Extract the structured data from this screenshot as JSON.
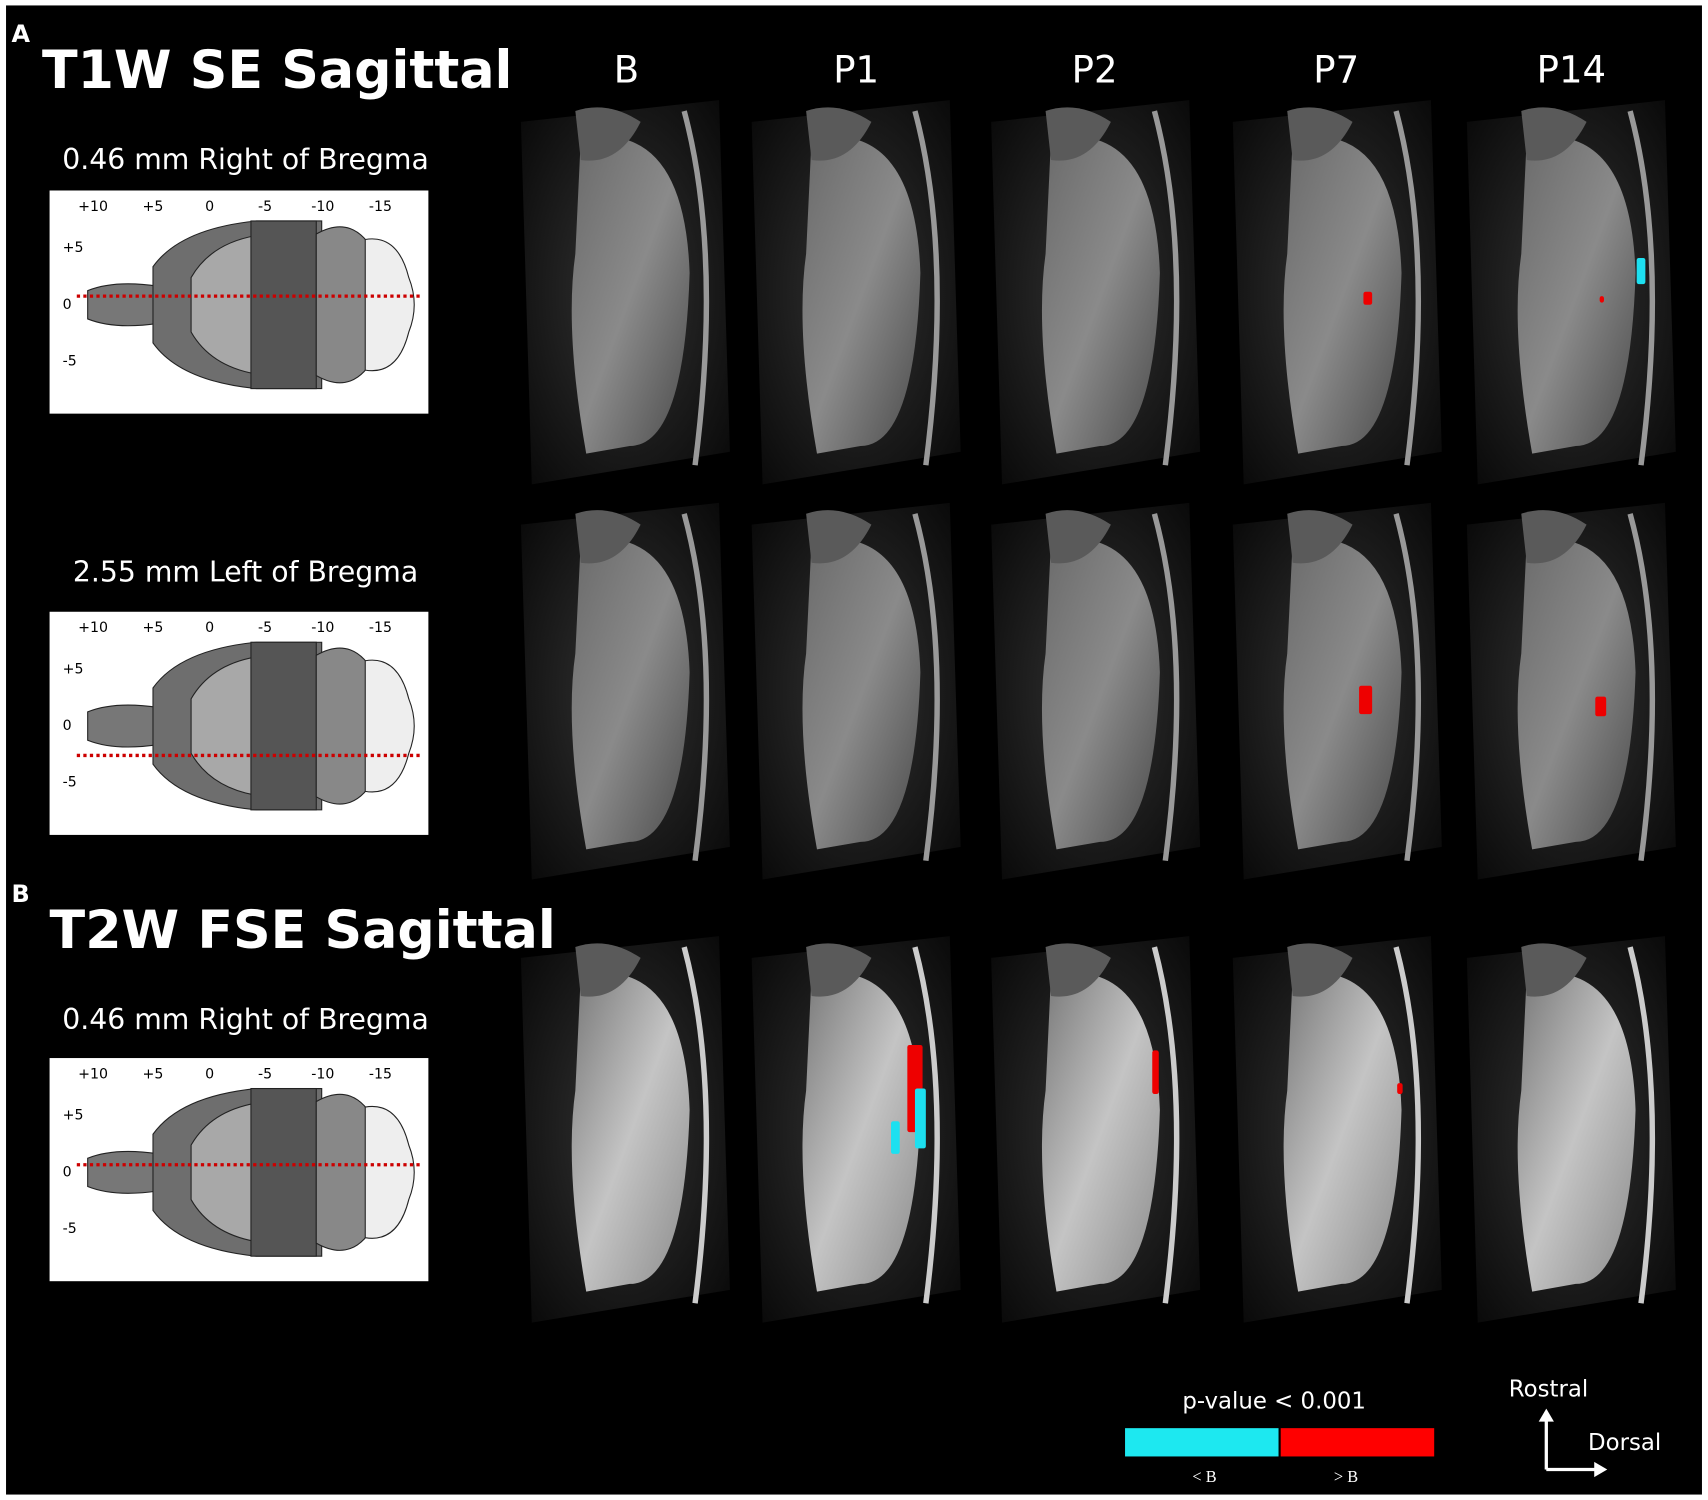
{
  "panels": [
    {
      "label": "A",
      "title": "T1W SE Sagittal",
      "slices": [
        {
          "position": "0.46 mm Right of Bregma"
        },
        {
          "position": "2.55 mm Left of Bregma"
        }
      ]
    },
    {
      "label": "B",
      "title": "T2W FSE Sagittal",
      "slices": [
        {
          "position": "0.46 mm Right of Bregma"
        }
      ]
    }
  ],
  "columns": [
    "B",
    "P1",
    "P2",
    "P7",
    "P14"
  ],
  "diagram": {
    "x_labels": [
      "+10",
      "+5",
      "0",
      "-5",
      "-10",
      "-15"
    ],
    "y_labels": [
      "+5",
      "0",
      "-5"
    ]
  },
  "legend": {
    "title": "p-value < 0.001",
    "items": [
      "< B",
      "> B"
    ]
  },
  "orientation": {
    "up": "Rostral",
    "right": "Dorsal"
  }
}
